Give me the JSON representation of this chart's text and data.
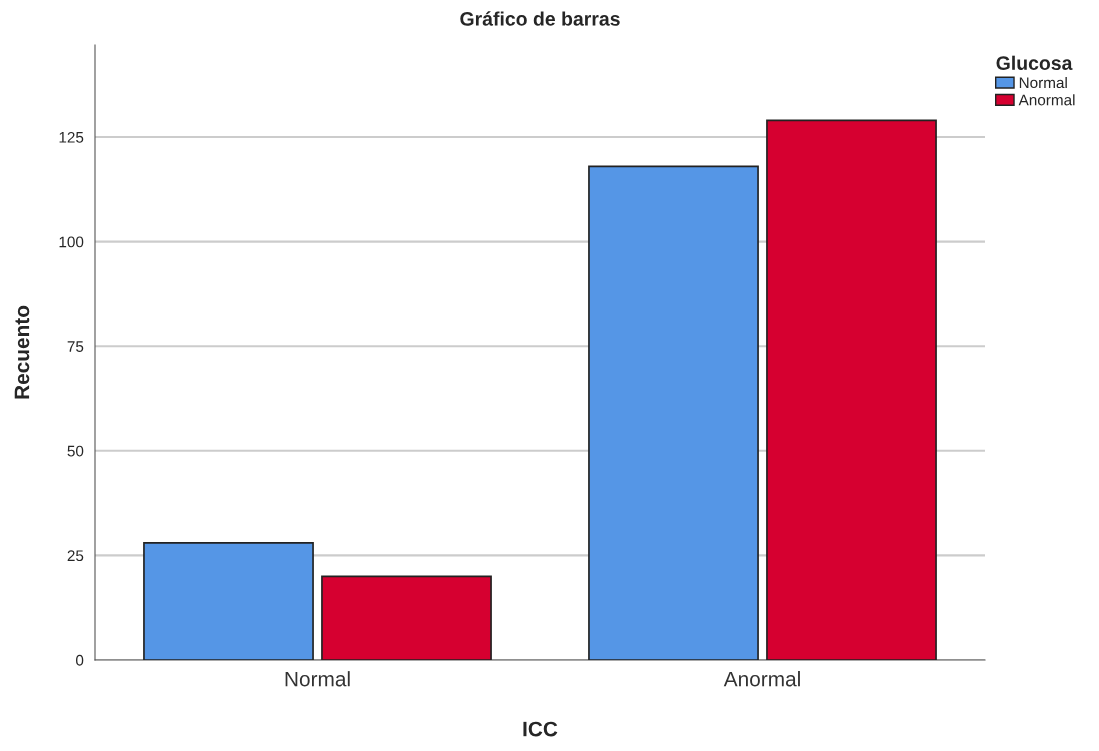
{
  "chart_data": {
    "type": "bar",
    "title": "Gráfico de barras",
    "xlabel": "ICC",
    "ylabel": "Recuento",
    "legend_title": "Glucosa",
    "categories": [
      "Normal",
      "Anormal"
    ],
    "series": [
      {
        "name": "Normal",
        "color": "#5596e6",
        "values": [
          28,
          118
        ]
      },
      {
        "name": "Anormal",
        "color": "#d60030",
        "values": [
          20,
          129
        ]
      }
    ],
    "ylim": [
      0,
      147
    ],
    "yticks": [
      0,
      25,
      50,
      75,
      100,
      125
    ],
    "grid": "y",
    "legend": "top right"
  }
}
